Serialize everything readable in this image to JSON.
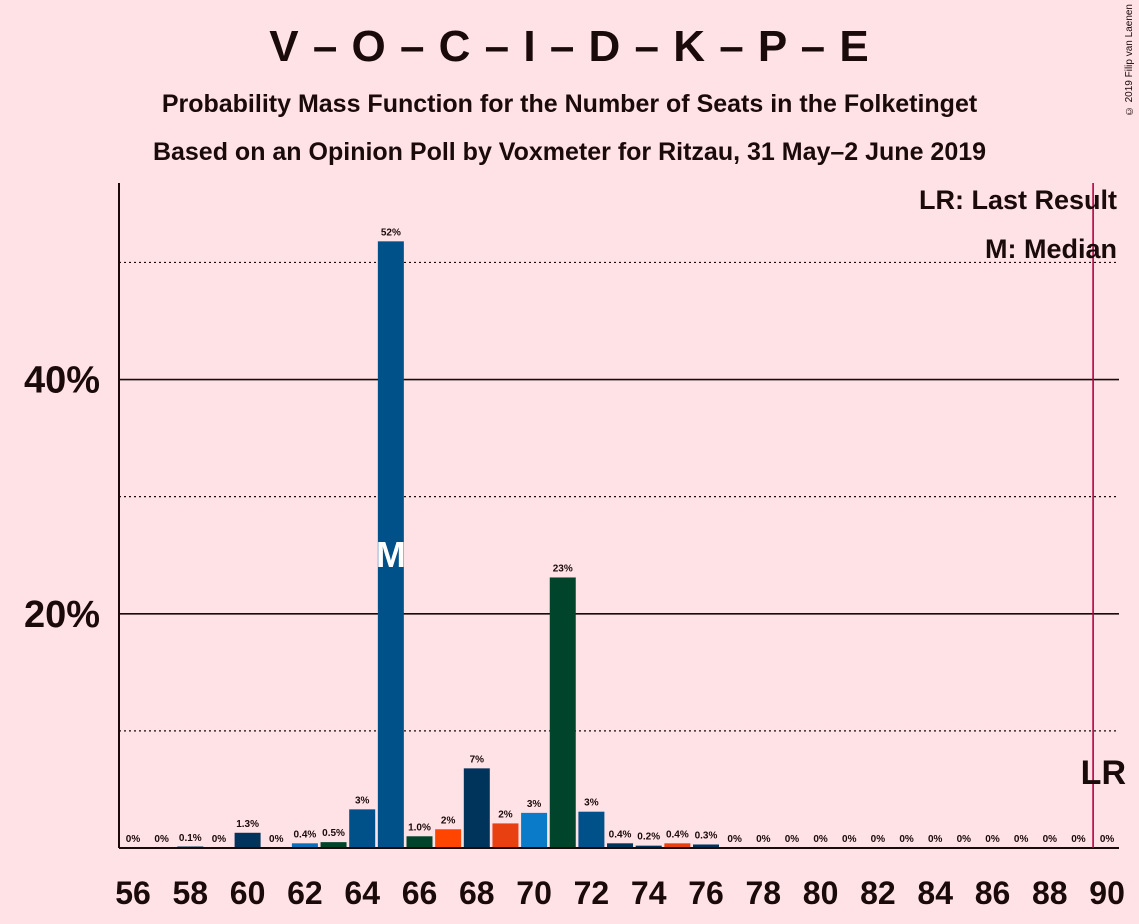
{
  "title": "V – O – C – I – D – K – P – E",
  "subtitle": "Probability Mass Function for the Number of Seats in the Folketinget",
  "subtitle2": "Based on an Opinion Poll by Voxmeter for Ritzau, 31 May–2 June 2019",
  "copyright": "© 2019 Filip van Laenen",
  "chart_data": {
    "type": "bar",
    "x": [
      56,
      57,
      58,
      59,
      60,
      61,
      62,
      63,
      64,
      65,
      66,
      67,
      68,
      69,
      70,
      71,
      72,
      73,
      74,
      75,
      76,
      77,
      78,
      79,
      80,
      81,
      82,
      83,
      84,
      85,
      86,
      87,
      88,
      89,
      90
    ],
    "values": [
      0,
      0,
      0.1,
      0,
      1.3,
      0,
      0.4,
      0.5,
      3.3,
      51.8,
      1.0,
      1.6,
      6.8,
      2.1,
      3.0,
      23.1,
      3.1,
      0.4,
      0.2,
      0.4,
      0.3,
      0,
      0,
      0,
      0,
      0,
      0,
      0,
      0,
      0,
      0,
      0,
      0,
      0,
      0
    ],
    "labels": [
      "0%",
      "0%",
      "0.1%",
      "0%",
      "1.3%",
      "0%",
      "0.4%",
      "0.5%",
      "3%",
      "52%",
      "1.0%",
      "2%",
      "7%",
      "2%",
      "3%",
      "23%",
      "3%",
      "0.4%",
      "0.2%",
      "0.4%",
      "0.3%",
      "0%",
      "0%",
      "0%",
      "0%",
      "0%",
      "0%",
      "0%",
      "0%",
      "0%",
      "0%",
      "0%",
      "0%",
      "0%",
      "0%"
    ],
    "colors": [
      "#00345A",
      "#00345A",
      "#00345A",
      "#00345A",
      "#00345A",
      "#00345A",
      "#0A6FB8",
      "#00452B",
      "#00508A",
      "#00508A",
      "#00452B",
      "#FF4500",
      "#00345A",
      "#E84010",
      "#0A7BC8",
      "#00452B",
      "#00508A",
      "#00345A",
      "#00345A",
      "#E84010",
      "#00345A",
      "#00345A",
      "#00345A",
      "#00345A",
      "#00345A",
      "#00345A",
      "#00345A",
      "#00345A",
      "#00345A",
      "#00345A",
      "#00345A",
      "#00345A",
      "#00345A",
      "#00345A",
      "#00345A"
    ],
    "xticks": [
      "56",
      "58",
      "60",
      "62",
      "64",
      "66",
      "68",
      "70",
      "72",
      "74",
      "76",
      "78",
      "80",
      "82",
      "84",
      "86",
      "88",
      "90"
    ],
    "yticks": [
      {
        "value": 20,
        "label": "20%"
      },
      {
        "value": 40,
        "label": "40%"
      }
    ],
    "dotted_gridlines": [
      10,
      30,
      50
    ],
    "ylim": [
      0,
      55
    ],
    "median": {
      "seat": 65,
      "label": "M"
    },
    "last_result": {
      "seat": 90,
      "label": "LR",
      "color": "#B00040"
    },
    "legend": {
      "lr": "LR: Last Result",
      "median": "M: Median",
      "placement": "top-right"
    }
  }
}
